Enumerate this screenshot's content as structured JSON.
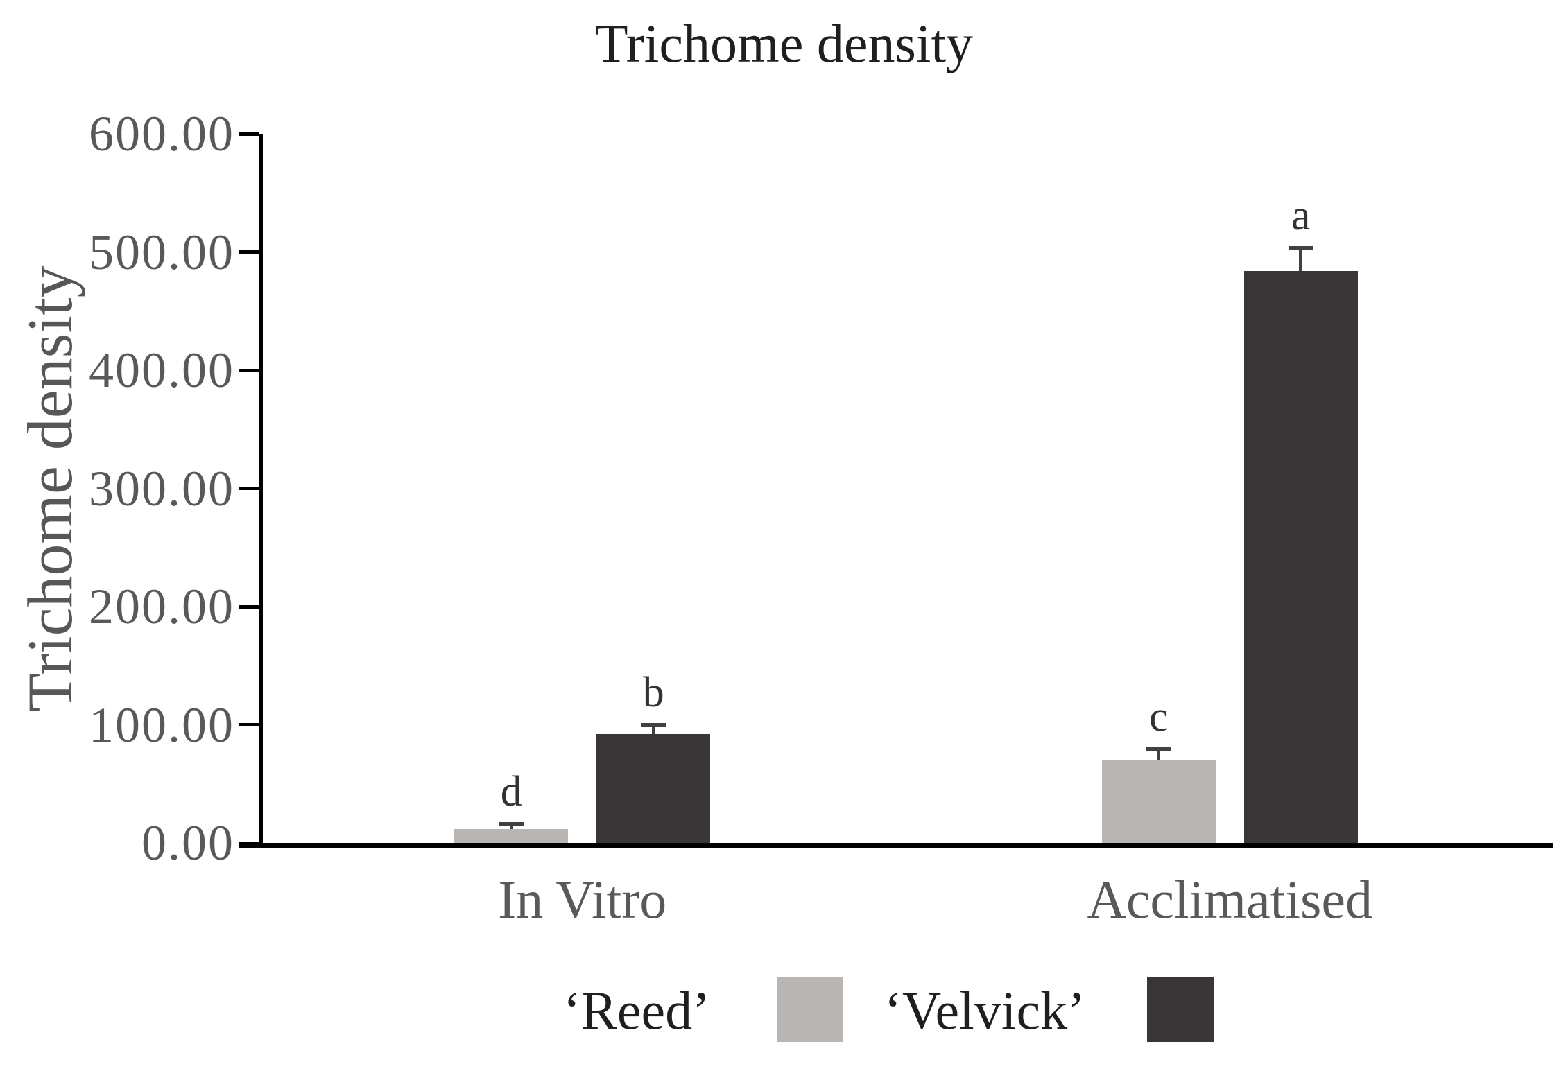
{
  "title": "Trichome density",
  "colors": {
    "reed": "#b9b5b2",
    "velvick": "#3a3536",
    "axis_text": "#595959",
    "title_text": "#1f1f1f",
    "legend_text": "#1f1f1f",
    "error_bar": "#404040",
    "sig_letter": "#333333",
    "axis_line": "#000000"
  },
  "y_axis": {
    "label": "Trichome density",
    "tick_values": [
      0,
      100,
      200,
      300,
      400,
      500,
      600
    ],
    "tick_labels": [
      "0.00",
      "100.00",
      "200.00",
      "300.00",
      "400.00",
      "500.00",
      "600.00"
    ]
  },
  "legend": {
    "items": [
      {
        "label": "‘Reed’",
        "series": "reed"
      },
      {
        "label": "‘Velvick’",
        "series": "velvick"
      }
    ]
  },
  "chart_data": {
    "type": "bar",
    "title": "Trichome density",
    "xlabel": "",
    "ylabel": "Trichome density",
    "ylim": [
      0,
      600
    ],
    "y_tick_step": 100,
    "grid": false,
    "legend_position": "bottom",
    "categories": [
      "In Vitro",
      "Acclimatised"
    ],
    "series": [
      {
        "name": "‘Reed’",
        "key": "reed",
        "values": [
          12,
          70
        ],
        "errors_upper": [
          4,
          9
        ],
        "sig_letters": [
          "d",
          "c"
        ]
      },
      {
        "name": "‘Velvick’",
        "key": "velvick",
        "values": [
          92,
          484
        ],
        "errors_upper": [
          8,
          19
        ],
        "sig_letters": [
          "b",
          "a"
        ]
      }
    ]
  }
}
